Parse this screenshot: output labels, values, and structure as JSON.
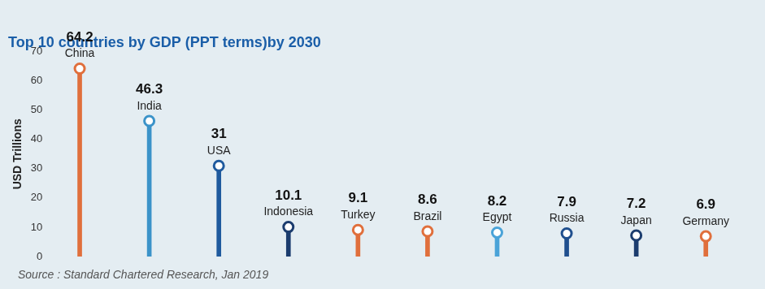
{
  "chart_data": {
    "type": "bar",
    "title": "Top 10 countries by GDP (PPT terms)by 2030",
    "y_label": "USD Trillions",
    "source": "Source : Standard Chartered Research, Jan 2019",
    "categories": [
      "China",
      "India",
      "USA",
      "Indonesia",
      "Turkey",
      "Brazil",
      "Egypt",
      "Russia",
      "Japan",
      "Germany"
    ],
    "values": [
      64.2,
      46.3,
      31,
      10.1,
      9.1,
      8.6,
      8.2,
      7.9,
      7.2,
      6.9
    ],
    "colors": [
      "#e06f3c",
      "#3b93c9",
      "#1f5a9e",
      "#1b3c6e",
      "#e06f3c",
      "#e06f3c",
      "#4aa3d8",
      "#1f4f8e",
      "#1b3c6e",
      "#e06f3c"
    ],
    "ylim": [
      0,
      70
    ],
    "yticks": [
      0,
      10,
      20,
      30,
      40,
      50,
      60,
      70
    ],
    "grid": false,
    "data_labels": true,
    "tick_labels": "y",
    "marker": "circle"
  }
}
